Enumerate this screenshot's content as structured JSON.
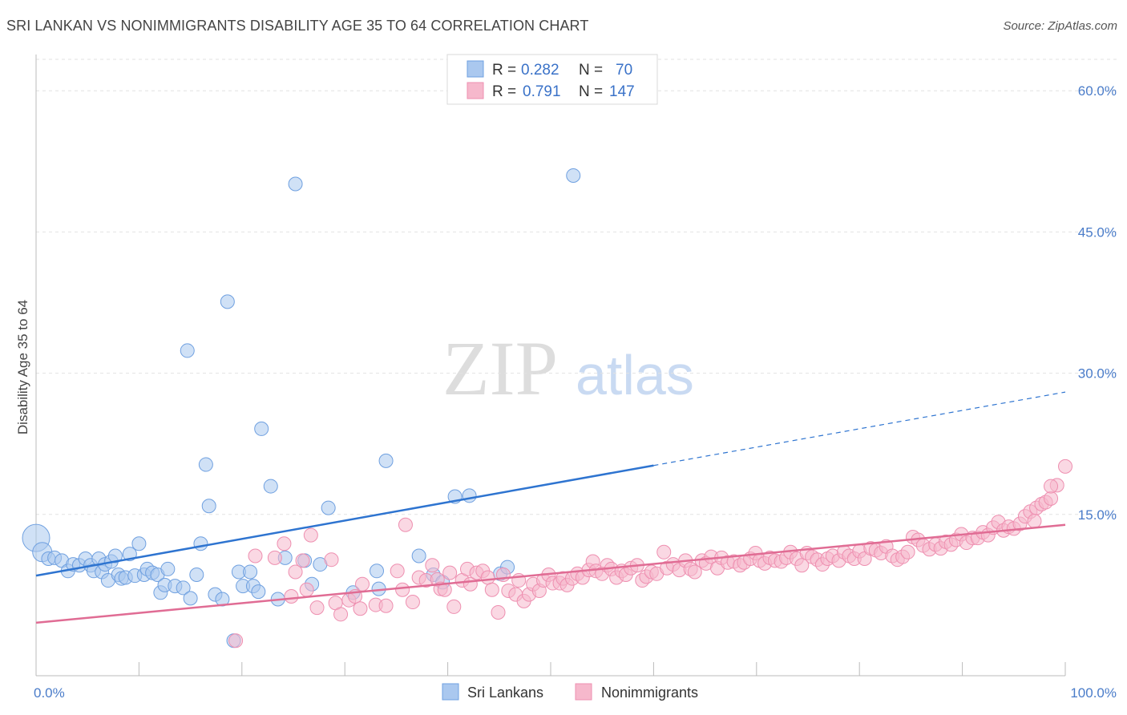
{
  "title": "SRI LANKAN VS NONIMMIGRANTS DISABILITY AGE 35 TO 64 CORRELATION CHART",
  "source": "Source: ZipAtlas.com",
  "watermark": {
    "zip": "ZIP",
    "atlas": "atlas"
  },
  "legend": {
    "r_label": "R =",
    "n_label": "N =",
    "rows": [
      {
        "r": "0.282",
        "n": "70",
        "color": "#aac8ef"
      },
      {
        "r": "0.791",
        "n": "147",
        "color": "#f6b8cc"
      }
    ]
  },
  "chart_data": {
    "type": "scatter",
    "title": "SRI LANKAN VS NONIMMIGRANTS DISABILITY AGE 35 TO 64 CORRELATION CHART",
    "xlabel": "",
    "ylabel": "Disability Age 35 to 64",
    "xlim": [
      0,
      100
    ],
    "ylim": [
      0,
      63
    ],
    "x_tick_labels": [
      "0.0%",
      "100.0%"
    ],
    "y_ticks": [
      15,
      30,
      45,
      60
    ],
    "y_tick_labels": [
      "15.0%",
      "30.0%",
      "45.0%",
      "60.0%"
    ],
    "grid": true,
    "legend_position": "top-center",
    "series": [
      {
        "name": "Sri Lankans",
        "color": "#6fa0e0",
        "fill": "#aac8ef",
        "line_color": "#2e74d0",
        "trend": {
          "x0": 0,
          "y0": 8.5,
          "x1": 60,
          "y1": 20.2,
          "dash_to_x": 100,
          "dash_to_y": 28.0
        },
        "points": [
          [
            0,
            12.5,
            3
          ],
          [
            0.6,
            11,
            2
          ],
          [
            1.2,
            10.3,
            1
          ],
          [
            1.8,
            10.4,
            1
          ],
          [
            2.5,
            10.1,
            1
          ],
          [
            3.1,
            9,
            1
          ],
          [
            3.6,
            9.7,
            1
          ],
          [
            4.2,
            9.6,
            1
          ],
          [
            4.8,
            10.3,
            1
          ],
          [
            5.3,
            9.6,
            1
          ],
          [
            5.6,
            9.0,
            1
          ],
          [
            6.1,
            10.3,
            1
          ],
          [
            6.4,
            8.9,
            1
          ],
          [
            6.7,
            9.7,
            1
          ],
          [
            7.0,
            8.0,
            1
          ],
          [
            7.3,
            10.0,
            1
          ],
          [
            7.7,
            10.6,
            1
          ],
          [
            8.0,
            8.6,
            1
          ],
          [
            8.3,
            8.2,
            1
          ],
          [
            8.7,
            8.3,
            1
          ],
          [
            9.1,
            10.8,
            1
          ],
          [
            9.6,
            8.5,
            1
          ],
          [
            10.0,
            11.9,
            1
          ],
          [
            10.5,
            8.6,
            1
          ],
          [
            10.8,
            9.2,
            1
          ],
          [
            11.3,
            8.8,
            1
          ],
          [
            11.8,
            8.6,
            1
          ],
          [
            12.1,
            6.7,
            1
          ],
          [
            12.5,
            7.5,
            1
          ],
          [
            12.8,
            9.2,
            1
          ],
          [
            13.5,
            7.4,
            1
          ],
          [
            14.3,
            7.2,
            1
          ],
          [
            14.7,
            32.4,
            1
          ],
          [
            15.0,
            6.1,
            1
          ],
          [
            15.6,
            8.6,
            1
          ],
          [
            16.0,
            11.9,
            1
          ],
          [
            16.5,
            20.3,
            1
          ],
          [
            16.8,
            15.9,
            1
          ],
          [
            17.4,
            6.5,
            1
          ],
          [
            18.1,
            6.0,
            1
          ],
          [
            18.6,
            37.6,
            1
          ],
          [
            19.2,
            1.6,
            1
          ],
          [
            19.7,
            8.9,
            1
          ],
          [
            20.1,
            7.4,
            1
          ],
          [
            20.8,
            8.9,
            1
          ],
          [
            21.1,
            7.4,
            1
          ],
          [
            21.6,
            6.8,
            1
          ],
          [
            21.9,
            24.1,
            1
          ],
          [
            22.8,
            18.0,
            1
          ],
          [
            23.5,
            6.0,
            1
          ],
          [
            24.2,
            10.4,
            1
          ],
          [
            25.2,
            50.1,
            1
          ],
          [
            26.1,
            10.1,
            1
          ],
          [
            26.8,
            7.6,
            1
          ],
          [
            27.6,
            9.7,
            1
          ],
          [
            28.4,
            15.7,
            1
          ],
          [
            30.8,
            6.7,
            1
          ],
          [
            33.1,
            9.0,
            1
          ],
          [
            33.3,
            7.1,
            1
          ],
          [
            34.0,
            20.7,
            1
          ],
          [
            37.2,
            10.6,
            1
          ],
          [
            38.6,
            8.6,
            1
          ],
          [
            39.5,
            7.8,
            1
          ],
          [
            40.7,
            16.9,
            1
          ],
          [
            42.1,
            17.0,
            1
          ],
          [
            45.1,
            8.7,
            1
          ],
          [
            45.8,
            9.4,
            1
          ],
          [
            52.2,
            51.0,
            1
          ]
        ]
      },
      {
        "name": "Nonimmigrants",
        "color": "#ee8fb0",
        "fill": "#f6b8cc",
        "line_color": "#e06c94",
        "trend": {
          "x0": 0,
          "y0": 3.5,
          "x1": 100,
          "y1": 13.9
        },
        "points": [
          [
            19.4,
            1.6,
            1
          ],
          [
            21.3,
            10.6,
            1
          ],
          [
            23.2,
            10.4,
            1
          ],
          [
            24.1,
            11.9,
            1
          ],
          [
            24.8,
            6.3,
            1
          ],
          [
            25.2,
            8.9,
            1
          ],
          [
            25.9,
            10.1,
            1
          ],
          [
            26.3,
            7.0,
            1
          ],
          [
            26.7,
            12.8,
            1
          ],
          [
            27.3,
            5.1,
            1
          ],
          [
            28.7,
            10.2,
            1
          ],
          [
            29.1,
            5.6,
            1
          ],
          [
            29.6,
            4.4,
            1
          ],
          [
            30.4,
            5.9,
            1
          ],
          [
            31.0,
            6.3,
            1
          ],
          [
            31.5,
            5.0,
            1
          ],
          [
            31.7,
            7.6,
            1
          ],
          [
            33.0,
            5.4,
            1
          ],
          [
            34.0,
            5.3,
            1
          ],
          [
            35.1,
            9.0,
            1
          ],
          [
            35.6,
            7.0,
            1
          ],
          [
            35.9,
            13.9,
            1
          ],
          [
            36.6,
            5.7,
            1
          ],
          [
            37.2,
            8.3,
            1
          ],
          [
            37.9,
            8.0,
            1
          ],
          [
            38.5,
            9.6,
            1
          ],
          [
            39.0,
            8.1,
            1
          ],
          [
            39.3,
            7.1,
            1
          ],
          [
            39.7,
            7.0,
            1
          ],
          [
            40.2,
            8.8,
            1
          ],
          [
            40.6,
            5.2,
            1
          ],
          [
            41.4,
            8.0,
            1
          ],
          [
            41.9,
            9.2,
            1
          ],
          [
            42.2,
            7.6,
            1
          ],
          [
            42.8,
            8.8,
            1
          ],
          [
            43.4,
            9.0,
            1
          ],
          [
            43.9,
            8.3,
            1
          ],
          [
            44.3,
            7.0,
            1
          ],
          [
            44.9,
            4.6,
            1
          ],
          [
            45.4,
            8.6,
            1
          ],
          [
            45.9,
            6.9,
            1
          ],
          [
            46.6,
            6.5,
            1
          ],
          [
            46.9,
            8.0,
            1
          ],
          [
            47.4,
            5.8,
            1
          ],
          [
            47.9,
            6.5,
            1
          ],
          [
            48.3,
            7.6,
            1
          ],
          [
            48.9,
            6.9,
            1
          ],
          [
            49.3,
            8.0,
            1
          ],
          [
            49.8,
            8.6,
            1
          ],
          [
            50.2,
            7.7,
            1
          ],
          [
            50.9,
            7.7,
            1
          ],
          [
            51.2,
            8.2,
            1
          ],
          [
            51.6,
            7.5,
            1
          ],
          [
            52.1,
            8.2,
            1
          ],
          [
            52.6,
            8.7,
            1
          ],
          [
            53.1,
            8.3,
            1
          ],
          [
            53.7,
            9.1,
            1
          ],
          [
            54.1,
            10.0,
            1
          ],
          [
            54.4,
            9.0,
            1
          ],
          [
            55.0,
            8.7,
            1
          ],
          [
            55.5,
            9.6,
            1
          ],
          [
            55.9,
            9.2,
            1
          ],
          [
            56.4,
            8.3,
            1
          ],
          [
            56.9,
            9.0,
            1
          ],
          [
            57.3,
            8.6,
            1
          ],
          [
            57.8,
            9.3,
            1
          ],
          [
            58.4,
            9.6,
            1
          ],
          [
            58.9,
            8.0,
            1
          ],
          [
            59.3,
            8.4,
            1
          ],
          [
            59.8,
            8.9,
            1
          ],
          [
            60.3,
            8.7,
            1
          ],
          [
            61.0,
            11.0,
            1
          ],
          [
            61.3,
            9.3,
            1
          ],
          [
            61.9,
            9.7,
            1
          ],
          [
            62.5,
            9.1,
            1
          ],
          [
            63.1,
            10.1,
            1
          ],
          [
            63.6,
            9.2,
            1
          ],
          [
            64.0,
            8.9,
            1
          ],
          [
            64.7,
            10.1,
            1
          ],
          [
            65.1,
            9.8,
            1
          ],
          [
            65.6,
            10.5,
            1
          ],
          [
            66.2,
            9.3,
            1
          ],
          [
            66.6,
            10.4,
            1
          ],
          [
            67.2,
            9.9,
            1
          ],
          [
            67.8,
            10.0,
            1
          ],
          [
            68.4,
            9.6,
            1
          ],
          [
            68.8,
            9.9,
            1
          ],
          [
            69.4,
            10.3,
            1
          ],
          [
            69.9,
            10.9,
            1
          ],
          [
            70.3,
            10.1,
            1
          ],
          [
            70.8,
            9.8,
            1
          ],
          [
            71.3,
            10.4,
            1
          ],
          [
            71.8,
            10.1,
            1
          ],
          [
            72.4,
            10.0,
            1
          ],
          [
            72.9,
            10.4,
            1
          ],
          [
            73.3,
            11.0,
            1
          ],
          [
            73.9,
            10.3,
            1
          ],
          [
            74.4,
            9.6,
            1
          ],
          [
            74.9,
            10.9,
            1
          ],
          [
            75.4,
            10.5,
            1
          ],
          [
            75.9,
            10.2,
            1
          ],
          [
            76.4,
            9.7,
            1
          ],
          [
            76.9,
            10.3,
            1
          ],
          [
            77.4,
            10.6,
            1
          ],
          [
            78.0,
            10.1,
            1
          ],
          [
            78.5,
            11.0,
            1
          ],
          [
            79.0,
            10.6,
            1
          ],
          [
            79.5,
            10.3,
            1
          ],
          [
            80.0,
            11.1,
            1
          ],
          [
            80.5,
            10.3,
            1
          ],
          [
            81.1,
            11.4,
            1
          ],
          [
            81.6,
            11.2,
            1
          ],
          [
            82.1,
            10.9,
            1
          ],
          [
            82.6,
            11.6,
            1
          ],
          [
            83.2,
            10.6,
            1
          ],
          [
            83.7,
            10.2,
            1
          ],
          [
            84.2,
            10.5,
            1
          ],
          [
            84.7,
            11.0,
            1
          ],
          [
            85.2,
            12.6,
            1
          ],
          [
            85.7,
            12.3,
            1
          ],
          [
            86.2,
            11.7,
            1
          ],
          [
            86.8,
            11.3,
            1
          ],
          [
            87.4,
            11.8,
            1
          ],
          [
            87.9,
            11.4,
            1
          ],
          [
            88.4,
            12.1,
            1
          ],
          [
            88.9,
            11.8,
            1
          ],
          [
            89.4,
            12.3,
            1
          ],
          [
            89.9,
            12.9,
            1
          ],
          [
            90.4,
            12.0,
            1
          ],
          [
            91.0,
            12.5,
            1
          ],
          [
            91.5,
            12.5,
            1
          ],
          [
            92.0,
            13.1,
            1
          ],
          [
            92.5,
            12.8,
            1
          ],
          [
            93.0,
            13.6,
            1
          ],
          [
            93.5,
            14.2,
            1
          ],
          [
            94.0,
            13.3,
            1
          ],
          [
            94.5,
            13.7,
            1
          ],
          [
            95.0,
            13.5,
            1
          ],
          [
            95.6,
            14.0,
            1
          ],
          [
            96.1,
            14.8,
            1
          ],
          [
            96.6,
            15.3,
            1
          ],
          [
            97.2,
            15.7,
            1
          ],
          [
            97.7,
            16.1,
            1
          ],
          [
            98.1,
            16.3,
            1
          ],
          [
            98.6,
            16.7,
            1
          ],
          [
            99.2,
            18.1,
            1
          ],
          [
            100.0,
            20.1,
            1
          ],
          [
            98.6,
            18.0,
            1
          ],
          [
            97.0,
            14.3,
            1
          ]
        ]
      }
    ]
  },
  "bottom_legend": [
    {
      "label": "Sri Lankans",
      "color": "#aac8ef"
    },
    {
      "label": "Nonimmigrants",
      "color": "#f6b8cc"
    }
  ]
}
